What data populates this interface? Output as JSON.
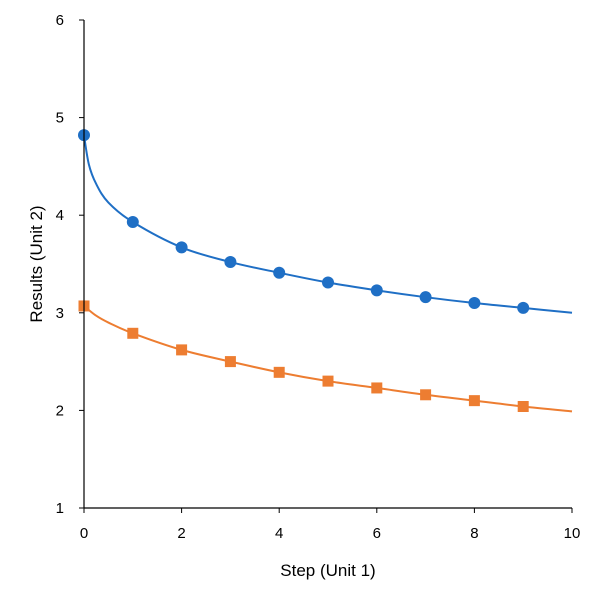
{
  "chart_data": {
    "type": "scatter",
    "title": "",
    "xlabel": "Step (Unit 1)",
    "ylabel": "Results (Unit 2)",
    "xlim": [
      0,
      10
    ],
    "ylim": [
      1,
      6
    ],
    "xticks": [
      0,
      2,
      4,
      6,
      8,
      10
    ],
    "yticks": [
      1,
      2,
      3,
      4,
      5,
      6
    ],
    "grid": false,
    "legend": "none",
    "series": [
      {
        "color": "#1f6fc5",
        "marker": "circle",
        "x": [
          0,
          1,
          2,
          3,
          4,
          5,
          6,
          7,
          8,
          9
        ],
        "y": [
          4.82,
          3.93,
          3.67,
          3.52,
          3.41,
          3.31,
          3.23,
          3.16,
          3.1,
          3.05
        ],
        "fit_curve": {
          "x": [
            0,
            0.1,
            0.25,
            0.5,
            1,
            2,
            3,
            4,
            5,
            6,
            7,
            8,
            9,
            10
          ],
          "y": [
            4.82,
            4.52,
            4.32,
            4.13,
            3.93,
            3.67,
            3.52,
            3.41,
            3.31,
            3.23,
            3.16,
            3.1,
            3.05,
            3.0
          ]
        }
      },
      {
        "color": "#ed7d31",
        "marker": "square",
        "x": [
          0,
          1,
          2,
          3,
          4,
          5,
          6,
          7,
          8,
          9
        ],
        "y": [
          3.07,
          2.79,
          2.62,
          2.5,
          2.39,
          2.3,
          2.23,
          2.16,
          2.1,
          2.04
        ],
        "fit_curve": {
          "x": [
            0,
            0.25,
            0.5,
            1,
            2,
            3,
            4,
            5,
            6,
            7,
            8,
            9,
            10
          ],
          "y": [
            3.07,
            2.97,
            2.9,
            2.79,
            2.62,
            2.5,
            2.39,
            2.3,
            2.23,
            2.16,
            2.1,
            2.04,
            1.99
          ]
        }
      }
    ]
  }
}
